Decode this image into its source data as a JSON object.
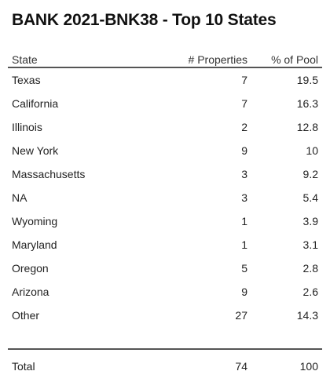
{
  "chart_data": {
    "type": "table",
    "title": "BANK 2021-BNK38 - Top 10 States",
    "columns": [
      "State",
      "# Properties",
      "% of Pool"
    ],
    "rows": [
      {
        "state": "Texas",
        "properties": "7",
        "pool": "19.5"
      },
      {
        "state": "California",
        "properties": "7",
        "pool": "16.3"
      },
      {
        "state": "Illinois",
        "properties": "2",
        "pool": "12.8"
      },
      {
        "state": "New York",
        "properties": "9",
        "pool": "10"
      },
      {
        "state": "Massachusetts",
        "properties": "3",
        "pool": "9.2"
      },
      {
        "state": "NA",
        "properties": "3",
        "pool": "5.4"
      },
      {
        "state": "Wyoming",
        "properties": "1",
        "pool": "3.9"
      },
      {
        "state": "Maryland",
        "properties": "1",
        "pool": "3.1"
      },
      {
        "state": "Oregon",
        "properties": "5",
        "pool": "2.8"
      },
      {
        "state": "Arizona",
        "properties": "9",
        "pool": "2.6"
      },
      {
        "state": "Other",
        "properties": "27",
        "pool": "14.3"
      }
    ],
    "total": {
      "label": "Total",
      "properties": "74",
      "pool": "100"
    }
  }
}
